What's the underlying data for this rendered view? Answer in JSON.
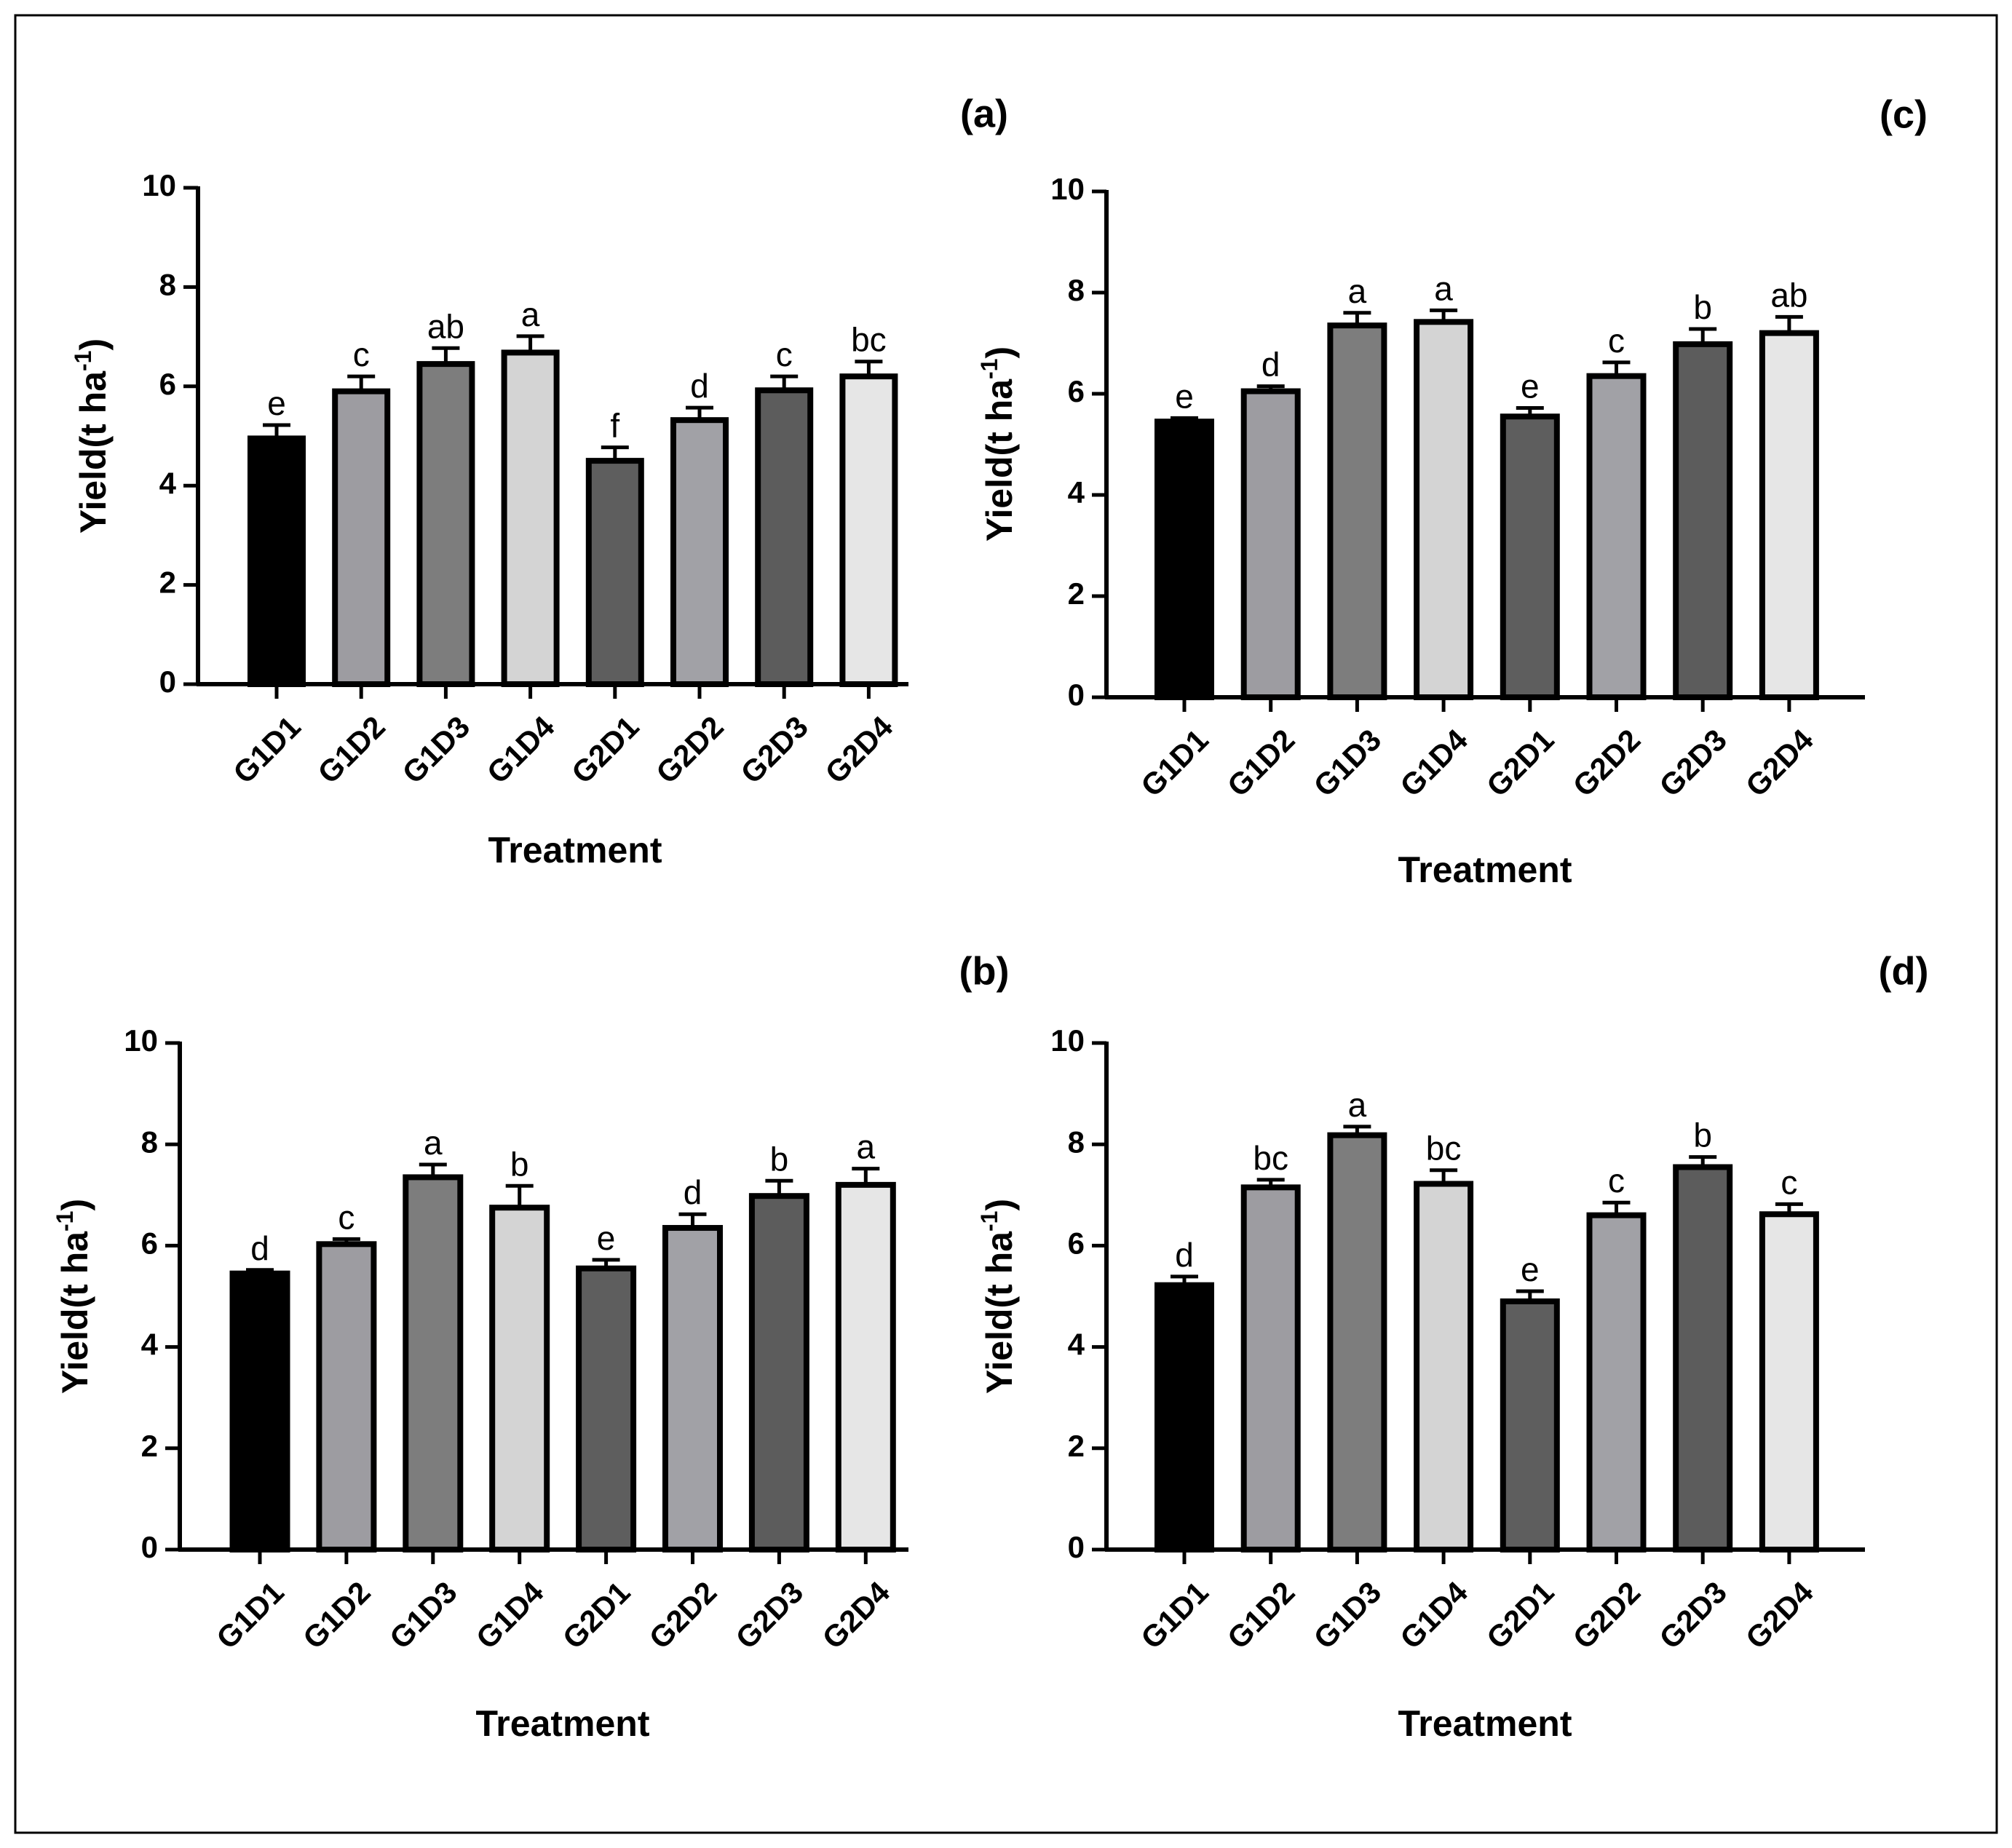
{
  "figure": {
    "frame_color": "#000000",
    "bar_stroke_color": "#000000"
  },
  "chart_data": [
    {
      "id": "a",
      "type": "bar",
      "panel_label": "(a)",
      "xlabel": "Treatment",
      "ylabel_main": "Yield(t ha",
      "ylabel_sup": "-1",
      "ylabel_close": ")",
      "ylim": [
        0,
        10
      ],
      "yticks": [
        0,
        2,
        4,
        6,
        8,
        10
      ],
      "categories": [
        "G1D1",
        "G1D2",
        "G1D3",
        "G1D4",
        "G2D1",
        "G2D2",
        "G2D3",
        "G2D4"
      ],
      "values": [
        4.95,
        5.9,
        6.45,
        6.68,
        4.5,
        5.32,
        5.92,
        6.2
      ],
      "errors": [
        0.27,
        0.3,
        0.32,
        0.33,
        0.27,
        0.25,
        0.28,
        0.3
      ],
      "significance": [
        "e",
        "c",
        "ab",
        "a",
        "f",
        "d",
        "c",
        "bc"
      ],
      "colors": [
        "#000000",
        "#9d9ca1",
        "#7d7d7d",
        "#d4d4d4",
        "#5e5e5e",
        "#a1a1a6",
        "#5c5c5c",
        "#e6e6e6"
      ]
    },
    {
      "id": "c",
      "type": "bar",
      "panel_label": "(c)",
      "xlabel": "Treatment",
      "ylabel_main": "Yield(t ha",
      "ylabel_sup": "-1",
      "ylabel_close": ")",
      "ylim": [
        0,
        10
      ],
      "yticks": [
        0,
        2,
        4,
        6,
        8,
        10
      ],
      "categories": [
        "G1D1",
        "G1D2",
        "G1D3",
        "G1D4",
        "G2D1",
        "G2D2",
        "G2D3",
        "G2D4"
      ],
      "values": [
        5.45,
        6.05,
        7.35,
        7.42,
        5.55,
        6.35,
        6.98,
        7.2
      ],
      "errors": [
        0.07,
        0.1,
        0.25,
        0.23,
        0.17,
        0.27,
        0.3,
        0.32
      ],
      "significance": [
        "e",
        "d",
        "a",
        "a",
        "e",
        "c",
        "b",
        "ab"
      ],
      "colors": [
        "#000000",
        "#9d9ca1",
        "#7d7d7d",
        "#d4d4d4",
        "#5e5e5e",
        "#a1a1a6",
        "#5c5c5c",
        "#e6e6e6"
      ]
    },
    {
      "id": "b",
      "type": "bar",
      "panel_label": "(b)",
      "xlabel": "Treatment",
      "ylabel_main": "Yield(t ha",
      "ylabel_sup": "-1",
      "ylabel_close": ")",
      "ylim": [
        0,
        10
      ],
      "yticks": [
        0,
        2,
        4,
        6,
        8,
        10
      ],
      "categories": [
        "G1D1",
        "G1D2",
        "G1D3",
        "G1D4",
        "G2D1",
        "G2D2",
        "G2D3",
        "G2D4"
      ],
      "values": [
        5.45,
        6.03,
        7.35,
        6.75,
        5.55,
        6.35,
        6.98,
        7.2
      ],
      "errors": [
        0.07,
        0.1,
        0.25,
        0.43,
        0.17,
        0.27,
        0.3,
        0.32
      ],
      "significance": [
        "d",
        "c",
        "a",
        "b",
        "e",
        "d",
        "b",
        "a"
      ],
      "colors": [
        "#000000",
        "#9d9ca1",
        "#7d7d7d",
        "#d4d4d4",
        "#5e5e5e",
        "#a1a1a6",
        "#5c5c5c",
        "#e6e6e6"
      ]
    },
    {
      "id": "d",
      "type": "bar",
      "panel_label": "(d)",
      "xlabel": "Treatment",
      "ylabel_main": "Yield(t ha",
      "ylabel_sup": "-1",
      "ylabel_close": ")",
      "ylim": [
        0,
        10
      ],
      "yticks": [
        0,
        2,
        4,
        6,
        8,
        10
      ],
      "categories": [
        "G1D1",
        "G1D2",
        "G1D3",
        "G1D4",
        "G2D1",
        "G2D2",
        "G2D3",
        "G2D4"
      ],
      "values": [
        5.22,
        7.15,
        8.18,
        7.22,
        4.9,
        6.6,
        7.55,
        6.62
      ],
      "errors": [
        0.17,
        0.15,
        0.17,
        0.27,
        0.2,
        0.25,
        0.2,
        0.2
      ],
      "significance": [
        "d",
        "bc",
        "a",
        "bc",
        "e",
        "c",
        "b",
        "c"
      ],
      "colors": [
        "#000000",
        "#9d9ca1",
        "#7d7d7d",
        "#d4d4d4",
        "#5e5e5e",
        "#a1a1a6",
        "#5c5c5c",
        "#e6e6e6"
      ]
    }
  ]
}
